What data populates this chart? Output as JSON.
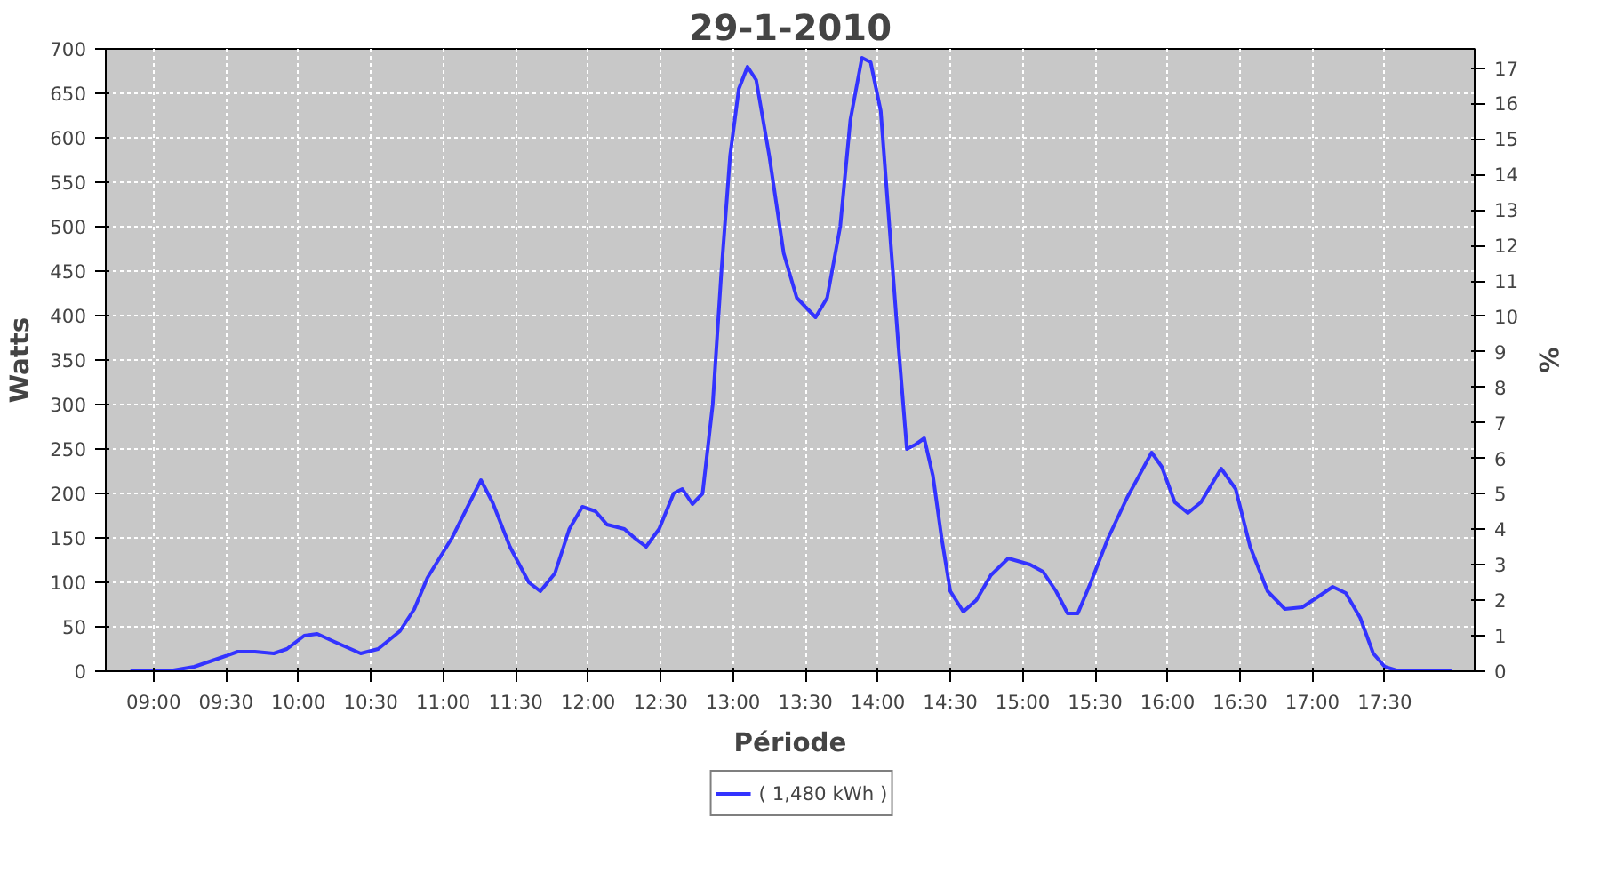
{
  "chart_data": {
    "type": "line",
    "title": "29-1-2010",
    "xlabel": "Période",
    "ylabel": "Watts",
    "y2label": "%",
    "xlim": [
      8.67,
      18.12
    ],
    "xticks": [
      {
        "value": 9,
        "label": "09:00"
      },
      {
        "value": 9.5,
        "label": "09:30"
      },
      {
        "value": 10,
        "label": "10:00"
      },
      {
        "value": 10.5,
        "label": "10:30"
      },
      {
        "value": 11,
        "label": "11:00"
      },
      {
        "value": 11.5,
        "label": "11:30"
      },
      {
        "value": 12,
        "label": "12:00"
      },
      {
        "value": 12.5,
        "label": "12:30"
      },
      {
        "value": 13,
        "label": "13:00"
      },
      {
        "value": 13.5,
        "label": "13:30"
      },
      {
        "value": 14,
        "label": "14:00"
      },
      {
        "value": 14.5,
        "label": "14:30"
      },
      {
        "value": 15,
        "label": "15:00"
      },
      {
        "value": 15.5,
        "label": "15:30"
      },
      {
        "value": 16,
        "label": "16:00"
      },
      {
        "value": 16.5,
        "label": "16:30"
      },
      {
        "value": 17,
        "label": "17:00"
      },
      {
        "value": 17.5,
        "label": "17:30"
      }
    ],
    "ylim": [
      0,
      700
    ],
    "yticks": [
      0,
      50,
      100,
      150,
      200,
      250,
      300,
      350,
      400,
      450,
      500,
      550,
      600,
      650,
      700
    ],
    "y2lim": [
      0,
      17.54
    ],
    "y2ticks": [
      0,
      1,
      2,
      3,
      4,
      5,
      6,
      7,
      8,
      9,
      10,
      11,
      12,
      13,
      14,
      15,
      16,
      17
    ],
    "grid": true,
    "legend": "bottom",
    "line_style": "solid",
    "series": [
      {
        "name": "( 1,480 kWh )",
        "color": "#3333ff",
        "x": [
          8.84,
          9.1,
          9.28,
          9.46,
          9.58,
          9.7,
          9.83,
          9.92,
          10.04,
          10.13,
          10.25,
          10.43,
          10.55,
          10.7,
          10.8,
          10.89,
          11.06,
          11.26,
          11.34,
          11.46,
          11.59,
          11.67,
          11.77,
          11.87,
          11.96,
          12.05,
          12.13,
          12.25,
          12.32,
          12.4,
          12.49,
          12.59,
          12.65,
          12.72,
          12.79,
          12.86,
          12.92,
          12.98,
          13.04,
          13.1,
          13.16,
          13.25,
          13.35,
          13.44,
          13.57,
          13.65,
          13.74,
          13.81,
          13.89,
          13.95,
          14.02,
          14.08,
          14.14,
          14.2,
          14.26,
          14.32,
          14.38,
          14.44,
          14.5,
          14.59,
          14.68,
          14.78,
          14.9,
          15.05,
          15.14,
          15.23,
          15.31,
          15.38,
          15.47,
          15.59,
          15.72,
          15.89,
          15.96,
          16.05,
          16.14,
          16.23,
          16.37,
          16.47,
          16.57,
          16.69,
          16.81,
          16.93,
          17.05,
          17.14,
          17.23,
          17.33,
          17.42,
          17.5,
          17.6,
          17.96
        ],
        "values": [
          0,
          0,
          5,
          15,
          22,
          22,
          20,
          25,
          40,
          42,
          33,
          20,
          25,
          45,
          70,
          105,
          150,
          215,
          190,
          140,
          100,
          90,
          110,
          160,
          185,
          180,
          165,
          160,
          150,
          140,
          160,
          200,
          205,
          188,
          200,
          300,
          450,
          580,
          655,
          680,
          665,
          580,
          470,
          420,
          398,
          420,
          500,
          620,
          690,
          685,
          630,
          500,
          370,
          250,
          255,
          262,
          220,
          150,
          90,
          67,
          80,
          108,
          127,
          120,
          112,
          90,
          65,
          65,
          100,
          150,
          195,
          246,
          230,
          190,
          178,
          190,
          228,
          205,
          140,
          90,
          70,
          72,
          85,
          95,
          88,
          60,
          20,
          5,
          0,
          0
        ]
      }
    ]
  }
}
